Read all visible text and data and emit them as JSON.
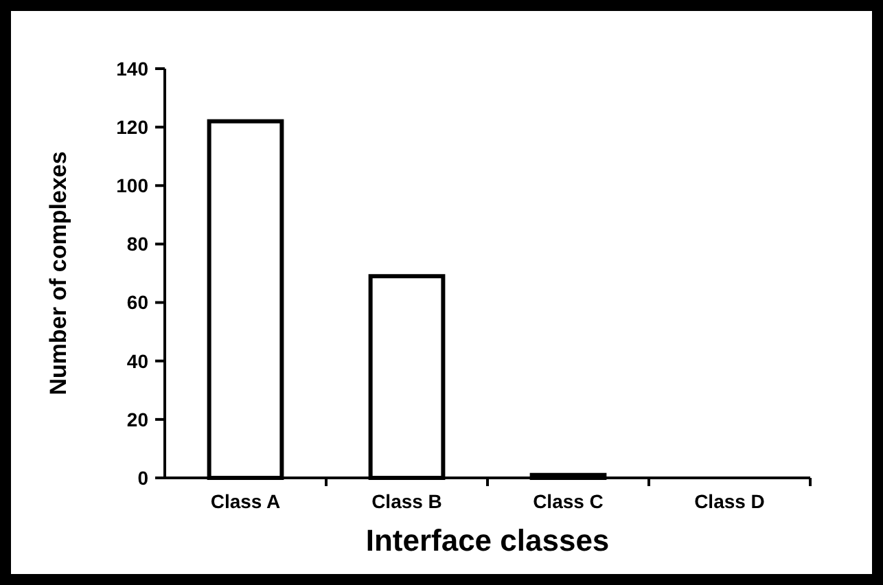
{
  "chart_data": {
    "type": "bar",
    "xlabel": "Interface classes",
    "ylabel": "Number of complexes",
    "categories": [
      "Class A",
      "Class B",
      "Class C",
      "Class D"
    ],
    "values": [
      122,
      69,
      1,
      0
    ],
    "color": "#ffffff",
    "ylim": [
      0,
      140
    ],
    "yticks": [
      0,
      20,
      40,
      60,
      80,
      100,
      120,
      140
    ],
    "grid": false
  }
}
